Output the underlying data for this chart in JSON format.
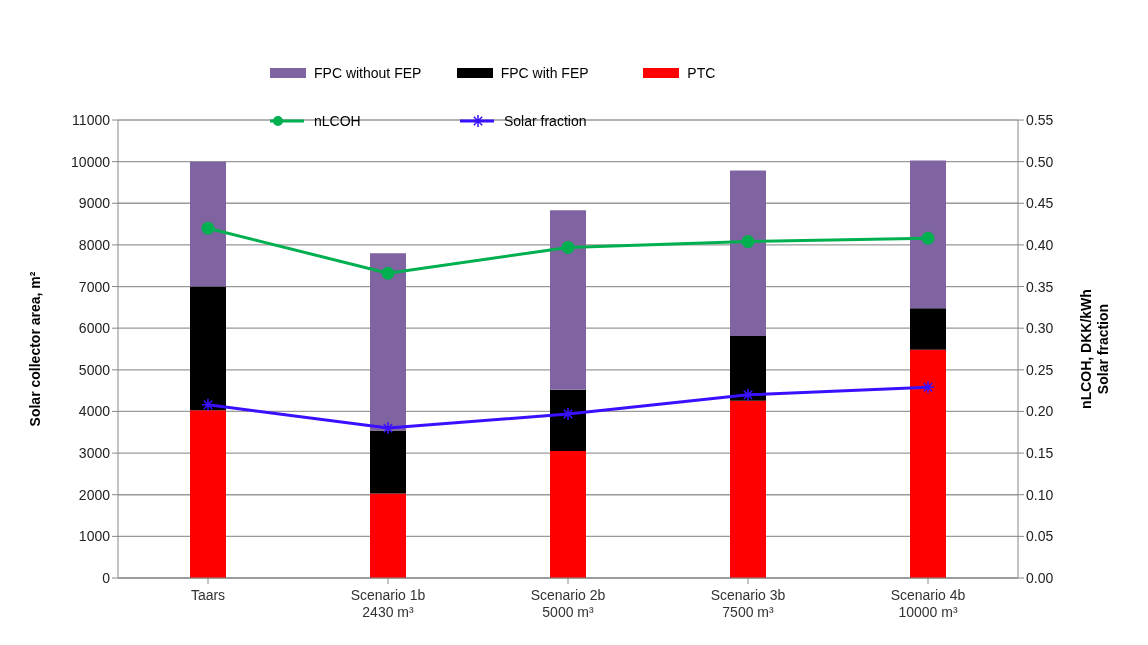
{
  "chart_data": {
    "type": "bar",
    "stacked": true,
    "categories": [
      "Taars",
      "Scenario 1b\n2430 m³",
      "Scenario 2b\n5000 m³",
      "Scenario 3b\n7500 m³",
      "Scenario 4b\n10000 m³"
    ],
    "series": [
      {
        "name": "PTC",
        "color": "#ff0000",
        "values": [
          4030,
          2030,
          3050,
          4260,
          5480
        ]
      },
      {
        "name": "FPC with FEP",
        "color": "#000000",
        "values": [
          2970,
          1510,
          1470,
          1550,
          1000
        ]
      },
      {
        "name": "FPC without FEP",
        "color": "#8064a2",
        "values": [
          3000,
          4260,
          4310,
          3980,
          3550
        ]
      },
      {
        "name": "nLCOH",
        "type": "line",
        "axis": "y2",
        "color": "#00b050",
        "marker": "circle",
        "values": [
          0.42,
          0.366,
          0.397,
          0.404,
          0.408
        ]
      },
      {
        "name": "Solar fraction",
        "type": "line",
        "axis": "y2",
        "color": "#3b0fff",
        "marker": "cross",
        "values": [
          0.208,
          0.18,
          0.197,
          0.22,
          0.229
        ]
      }
    ],
    "ylabel": "Solar collector area, m²",
    "y2label": "nLCOH, DKK/kWh\nSolar fraction",
    "ylim": [
      0,
      11000
    ],
    "yticks": [
      0,
      1000,
      2000,
      3000,
      4000,
      5000,
      6000,
      7000,
      8000,
      9000,
      10000,
      11000
    ],
    "y2lim": [
      0,
      0.55
    ],
    "y2ticks": [
      {
        "value": 0,
        "label": "0.00"
      },
      {
        "value": 0.05,
        "label": "0.05"
      },
      {
        "value": 0.1,
        "label": "0.10"
      },
      {
        "value": 0.15,
        "label": "0.15"
      },
      {
        "value": 0.2,
        "label": "0.20"
      },
      {
        "value": 0.25,
        "label": "0.25"
      },
      {
        "value": 0.3,
        "label": "0.30"
      },
      {
        "value": 0.35,
        "label": "0.35"
      },
      {
        "value": 0.4,
        "label": "0.40"
      },
      {
        "value": 0.45,
        "label": "0.45"
      },
      {
        "value": 0.5,
        "label": "0.50"
      },
      {
        "value": 0.55,
        "label": "0.55"
      }
    ],
    "grid": "y",
    "legend": "top"
  }
}
